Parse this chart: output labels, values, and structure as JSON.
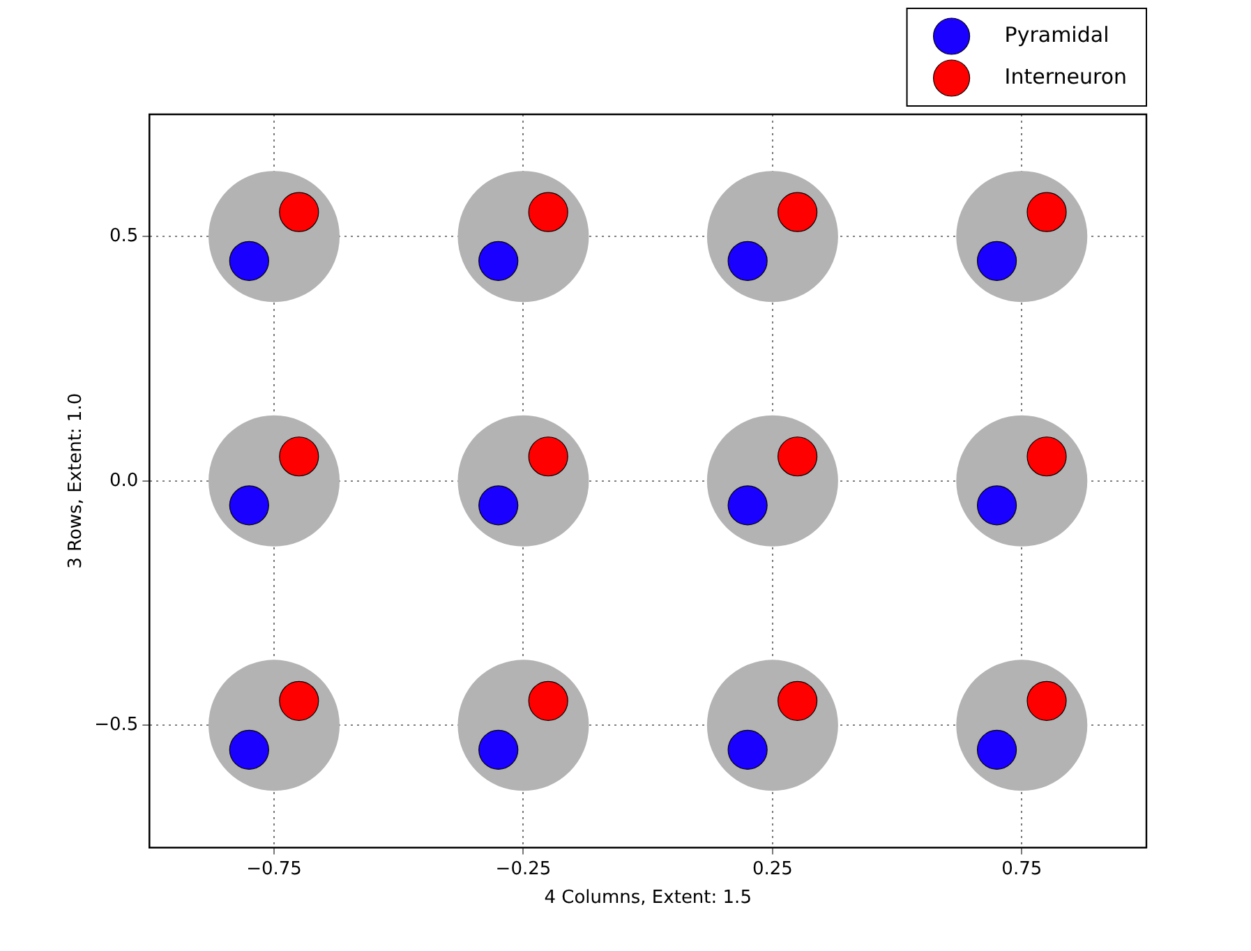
{
  "chart_data": {
    "type": "scatter",
    "xlabel": "4 Columns, Extent: 1.5",
    "ylabel": "3 Rows, Extent: 1.0",
    "xlim": [
      -1.0,
      1.0
    ],
    "ylim": [
      -0.75,
      0.75
    ],
    "xticks": [
      {
        "value": -0.75,
        "label": "−0.75"
      },
      {
        "value": -0.25,
        "label": "−0.25"
      },
      0.25,
      0.75
    ],
    "yticks": [
      {
        "value": -0.5,
        "label": "−0.5"
      },
      {
        "value": 0,
        "label": "0.0"
      },
      0.5
    ],
    "grid": true,
    "legend": "top right",
    "marker": "circle",
    "series": [
      {
        "color": "#b3b3b3",
        "x": [
          -0.75,
          -0.25,
          0.25,
          0.75,
          -0.75,
          -0.25,
          0.25,
          0.75,
          -0.75,
          -0.25,
          0.25,
          0.75
        ],
        "values": [
          0.5,
          0.5,
          0.5,
          0.5,
          0,
          0,
          0,
          0,
          -0.5,
          -0.5,
          -0.5,
          -0.5
        ]
      },
      {
        "name": "Pyramidal",
        "color": "#1a00ff",
        "x": [
          -0.8,
          -0.3,
          0.2,
          0.7,
          -0.8,
          -0.3,
          0.2,
          0.7,
          -0.8,
          -0.3,
          0.2,
          0.7
        ],
        "values": [
          0.45,
          0.45,
          0.45,
          0.45,
          -0.05,
          -0.05,
          -0.05,
          -0.05,
          -0.55,
          -0.55,
          -0.55,
          -0.55
        ]
      },
      {
        "name": "Interneuron",
        "color": "#ff0000",
        "x": [
          -0.7,
          -0.2,
          0.3,
          0.8,
          -0.7,
          -0.2,
          0.3,
          0.8,
          -0.7,
          -0.2,
          0.3,
          0.8
        ],
        "values": [
          0.55,
          0.55,
          0.55,
          0.55,
          0.05,
          0.05,
          0.05,
          0.05,
          -0.45,
          -0.45,
          -0.45,
          -0.45
        ]
      }
    ]
  }
}
